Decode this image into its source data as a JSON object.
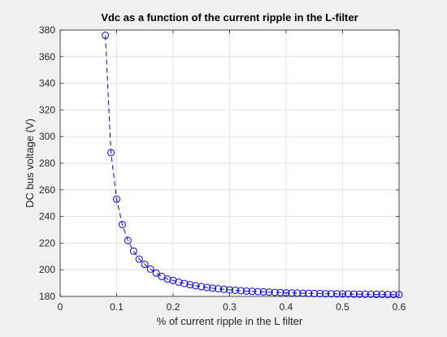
{
  "chart_data": {
    "type": "line",
    "title": "Vdc as a function of the current ripple in the L-filter",
    "xlabel": "% of current ripple in the L filter",
    "ylabel": "DC bus voltage (V)",
    "xlim": [
      0,
      0.6
    ],
    "ylim": [
      180,
      380
    ],
    "xticks": [
      0,
      0.1,
      0.2,
      0.3,
      0.4,
      0.5,
      0.6
    ],
    "xtick_labels": [
      "0",
      "0.1",
      "0.2",
      "0.3",
      "0.4",
      "0.5",
      "0.6"
    ],
    "yticks": [
      180,
      200,
      220,
      240,
      260,
      280,
      300,
      320,
      340,
      360,
      380
    ],
    "ytick_labels": [
      "180",
      "200",
      "220",
      "240",
      "260",
      "280",
      "300",
      "320",
      "340",
      "360",
      "380"
    ],
    "grid": true,
    "legend": "none",
    "line_style": "dashed",
    "marker": "circle",
    "series": [
      {
        "color": "#0000ff",
        "x": [
          0.08,
          0.09,
          0.1,
          0.11,
          0.12,
          0.13,
          0.14,
          0.15,
          0.16,
          0.17,
          0.18,
          0.19,
          0.2,
          0.21,
          0.22,
          0.23,
          0.24,
          0.25,
          0.26,
          0.27,
          0.28,
          0.29,
          0.3,
          0.31,
          0.32,
          0.33,
          0.34,
          0.35,
          0.36,
          0.37,
          0.38,
          0.39,
          0.4,
          0.41,
          0.42,
          0.43,
          0.44,
          0.45,
          0.46,
          0.47,
          0.48,
          0.49,
          0.5,
          0.51,
          0.52,
          0.53,
          0.54,
          0.55,
          0.56,
          0.57,
          0.58,
          0.59,
          0.6
        ],
        "y": [
          376,
          288,
          253,
          234,
          222,
          214,
          208,
          204,
          200.5,
          197.5,
          195,
          193,
          192,
          190.7,
          189.7,
          188.8,
          188,
          187.3,
          186.7,
          186.2,
          185.7,
          185.3,
          184.9,
          184.6,
          184.3,
          184,
          183.8,
          183.6,
          183.4,
          183.2,
          183,
          182.9,
          182.7,
          182.6,
          182.5,
          182.4,
          182.3,
          182.2,
          182.1,
          182,
          182,
          181.9,
          181.8,
          181.8,
          181.7,
          181.7,
          181.6,
          181.6,
          181.5,
          181.5,
          181.4,
          181.4,
          181.3
        ]
      }
    ]
  }
}
